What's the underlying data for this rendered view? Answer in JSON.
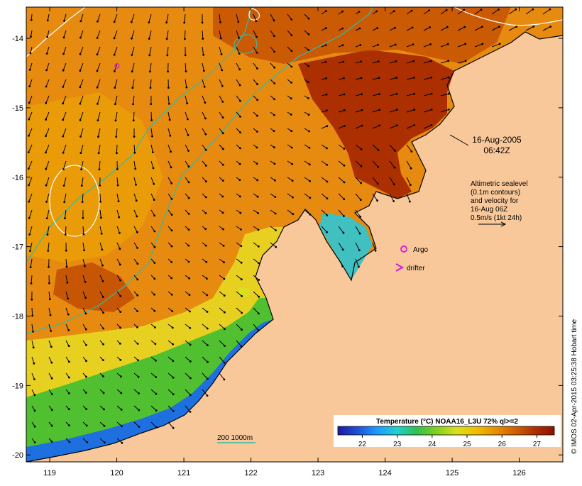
{
  "map": {
    "lon_ticks": [
      "119",
      "120",
      "121",
      "122",
      "123",
      "124",
      "125",
      "126"
    ],
    "lat_ticks": [
      "-14",
      "-15",
      "-16",
      "-17",
      "-18",
      "-19",
      "-20"
    ],
    "lon_range": [
      118.65,
      126.65
    ],
    "lat_range": [
      -20.1,
      -13.55
    ]
  },
  "annotations": {
    "date": "16-Aug-2005",
    "time": "06:42Z",
    "alt_lines": [
      "Altimetric sealevel",
      "(0.1m contours)",
      "and velocity for",
      "16-Aug 06Z",
      "0.5m/s (1kt 24h)"
    ],
    "argo_label": "Argo",
    "drifter_label": "drifter",
    "depth_label": "200  1000m"
  },
  "colorbar": {
    "title": "Temperature (°C) NOAA16_L3U 72% ql>=2",
    "ticks": [
      "22",
      "23",
      "24",
      "25",
      "26",
      "27"
    ],
    "colors": [
      "#1a1aa0",
      "#1e50d8",
      "#1e9bff",
      "#20d0d0",
      "#30c050",
      "#80d020",
      "#d8e020",
      "#f0c000",
      "#e89000",
      "#d06000",
      "#b03000",
      "#901000"
    ]
  },
  "credit": "© IMOS 02-Apr-2015 03:25:38 Hobart time",
  "colors": {
    "land": "#f9c89a",
    "contour_depth": "#33bbaa",
    "contour_sealevel": "#ffffff",
    "argo": "#dd22dd"
  }
}
